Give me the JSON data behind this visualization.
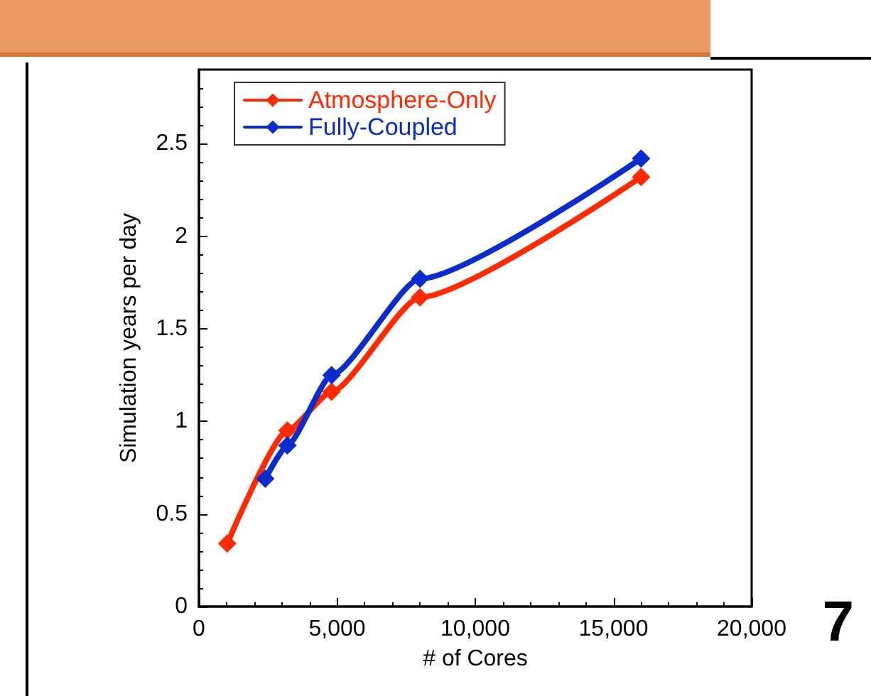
{
  "chart_data": {
    "type": "line",
    "xlabel": "# of Cores",
    "ylabel": "Simulation years per day",
    "series": [
      {
        "name": "Atmosphere-Only",
        "color": "#ff2a00",
        "x": [
          1024,
          2400,
          3200,
          4800,
          8000,
          16000
        ],
        "values": [
          0.34,
          null,
          0.95,
          1.16,
          1.67,
          2.32
        ]
      },
      {
        "name": "Fully-Coupled",
        "color": "#0a2ccc",
        "x": [
          2400,
          3200,
          4800,
          8000,
          16000
        ],
        "values": [
          0.69,
          0.87,
          1.25,
          1.77,
          2.42
        ]
      }
    ],
    "xlim": [
      0,
      20000
    ],
    "xticks": [
      0,
      {
        "value": 5000,
        "label": "5,000"
      },
      {
        "value": 10000,
        "label": "10,000"
      },
      {
        "value": 15000,
        "label": "15,000"
      },
      {
        "value": 20000,
        "label": "20,000"
      }
    ],
    "ylim": [
      0,
      2.9
    ],
    "yticks": [
      0,
      0.5,
      1,
      1.5,
      2,
      2.5
    ],
    "annotations": [
      "7"
    ],
    "legend": "top left",
    "grid": false,
    "marker": "diamond",
    "line_style": "solid"
  }
}
